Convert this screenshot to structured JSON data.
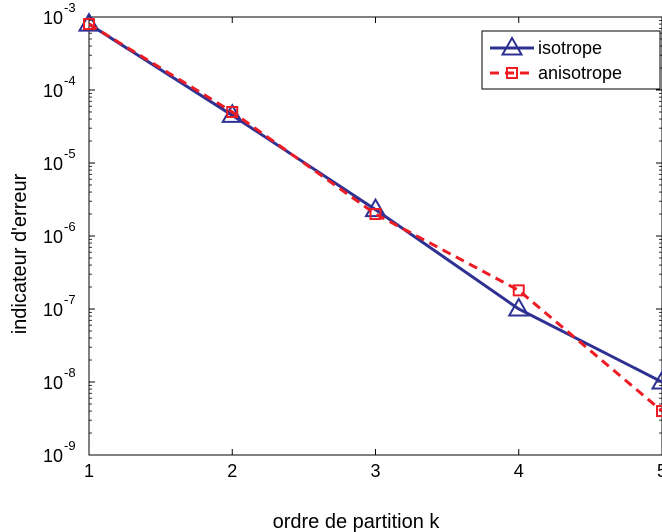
{
  "chart_data": {
    "type": "line",
    "xlabel": "ordre de partition  k",
    "ylabel": "indicateur d'erreur",
    "x": [
      1,
      2,
      3,
      4,
      5
    ],
    "xticks": [
      "1",
      "2",
      "3",
      "4",
      "5"
    ],
    "xlim": [
      1,
      5
    ],
    "ylim": [
      1e-09,
      0.001
    ],
    "yscale": "log",
    "yticks": [
      {
        "base": "10",
        "exp": "-9"
      },
      {
        "base": "10",
        "exp": "-8"
      },
      {
        "base": "10",
        "exp": "-7"
      },
      {
        "base": "10",
        "exp": "-6"
      },
      {
        "base": "10",
        "exp": "-5"
      },
      {
        "base": "10",
        "exp": "-4"
      },
      {
        "base": "10",
        "exp": "-3"
      }
    ],
    "grid": false,
    "legend_position": "top-right",
    "series": [
      {
        "name": "isotrope",
        "values": [
          0.0008,
          4.5e-05,
          2.3e-06,
          1e-07,
          1e-08
        ],
        "color": "#2e3192",
        "line_style": "solid",
        "marker": "triangle"
      },
      {
        "name": "anisotrope",
        "values": [
          0.0008,
          5e-05,
          2e-06,
          1.8e-07,
          4e-09
        ],
        "color": "#ed1c24",
        "line_style": "dashed",
        "marker": "square"
      }
    ]
  }
}
